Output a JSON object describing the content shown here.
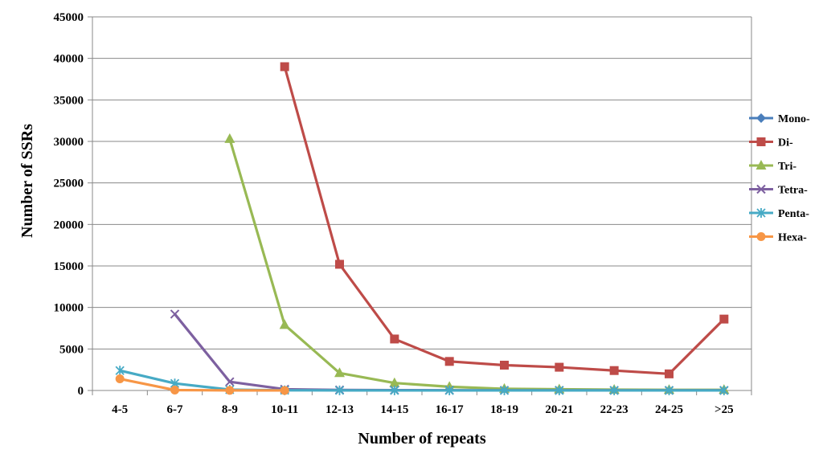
{
  "chart_data": {
    "type": "line",
    "title": "",
    "xlabel": "Number of repeats",
    "ylabel": "Number of SSRs",
    "categories": [
      "4-5",
      "6-7",
      "8-9",
      "10-11",
      "12-13",
      "14-15",
      "16-17",
      "18-19",
      "20-21",
      "22-23",
      "24-25",
      ">25"
    ],
    "ylim": [
      0,
      45000
    ],
    "yticks": [
      0,
      5000,
      10000,
      15000,
      20000,
      25000,
      30000,
      35000,
      40000,
      45000
    ],
    "grid": true,
    "legend_position": "right",
    "series": [
      {
        "name": "Mono-",
        "color": "#4a7ebb",
        "marker": "diamond",
        "values": [
          null,
          null,
          null,
          null,
          null,
          null,
          null,
          null,
          null,
          null,
          null,
          null
        ]
      },
      {
        "name": "Di-",
        "color": "#be4b48",
        "marker": "square",
        "values": [
          null,
          null,
          null,
          39000,
          15200,
          6200,
          3500,
          3050,
          2800,
          2400,
          2000,
          8600
        ]
      },
      {
        "name": "Tri-",
        "color": "#98b954",
        "marker": "triangle",
        "values": [
          null,
          null,
          30300,
          7900,
          2100,
          900,
          450,
          200,
          150,
          100,
          80,
          80
        ]
      },
      {
        "name": "Tetra-",
        "color": "#7d60a0",
        "marker": "x",
        "values": [
          null,
          9200,
          1050,
          150,
          60,
          40,
          30,
          20,
          20,
          10,
          10,
          10
        ]
      },
      {
        "name": "Penta-",
        "color": "#46aac5",
        "marker": "star",
        "values": [
          2400,
          850,
          100,
          20,
          10,
          5,
          5,
          5,
          5,
          5,
          5,
          5
        ]
      },
      {
        "name": "Hexa-",
        "color": "#f79646",
        "marker": "circle",
        "values": [
          1400,
          50,
          10,
          5,
          null,
          null,
          null,
          null,
          null,
          null,
          null,
          null
        ]
      }
    ]
  }
}
